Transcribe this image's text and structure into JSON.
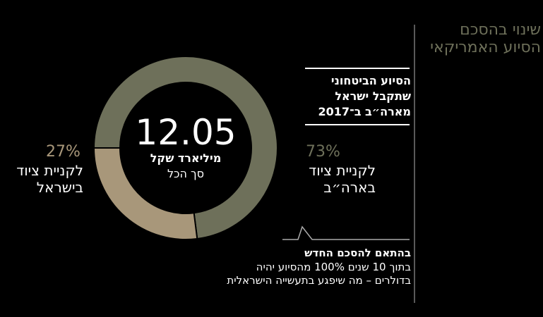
{
  "chart_data": {
    "type": "pie",
    "donut": true,
    "title": "שינוי בהסכם הסיוע האמריקאי",
    "subtitle": "הסיוע הביטחוני שתקבל ישראל מארה״ב ב־2017",
    "total": 12.05,
    "total_unit": "מיליארד שקל",
    "total_label": "סך הכל",
    "categories": [
      "לקניית ציוד בארה״ב",
      "לקניית ציוד בישראל"
    ],
    "values": [
      73,
      27
    ],
    "value_labels": [
      "73%",
      "27%"
    ],
    "colors": [
      "#6e705a",
      "#a8977a"
    ],
    "note": {
      "heading": "בהתאם להסכם החדש",
      "text": "בתוך 10 שנים 100% מהסיוע יהיה בדולרים – מה שיפגע בתעשייה הישראלית"
    }
  }
}
